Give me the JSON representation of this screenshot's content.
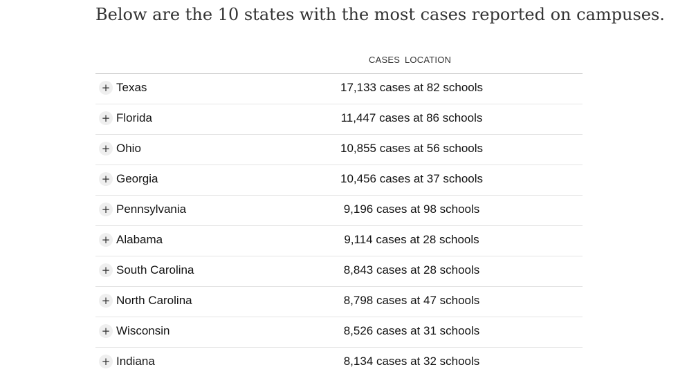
{
  "intro": "Below are the 10 states with the most cases reported on campuses.",
  "table": {
    "headers": {
      "cases": "CASES",
      "location": "LOCATION"
    },
    "expand_symbol": "+",
    "rows": [
      {
        "state": "Texas",
        "summary": "17,133 cases at 82 schools"
      },
      {
        "state": "Florida",
        "summary": "11,447 cases at 86 schools"
      },
      {
        "state": "Ohio",
        "summary": "10,855 cases at 56 schools"
      },
      {
        "state": "Georgia",
        "summary": "10,456 cases at 37 schools"
      },
      {
        "state": "Pennsylvania",
        "summary": "9,196 cases at 98 schools"
      },
      {
        "state": "Alabama",
        "summary": "9,114 cases at 28 schools"
      },
      {
        "state": "South Carolina",
        "summary": "8,843 cases at 28 schools"
      },
      {
        "state": "North Carolina",
        "summary": "8,798 cases at 47 schools"
      },
      {
        "state": "Wisconsin",
        "summary": "8,526 cases at 31 schools"
      },
      {
        "state": "Indiana",
        "summary": "8,134 cases at 32 schools"
      }
    ]
  }
}
